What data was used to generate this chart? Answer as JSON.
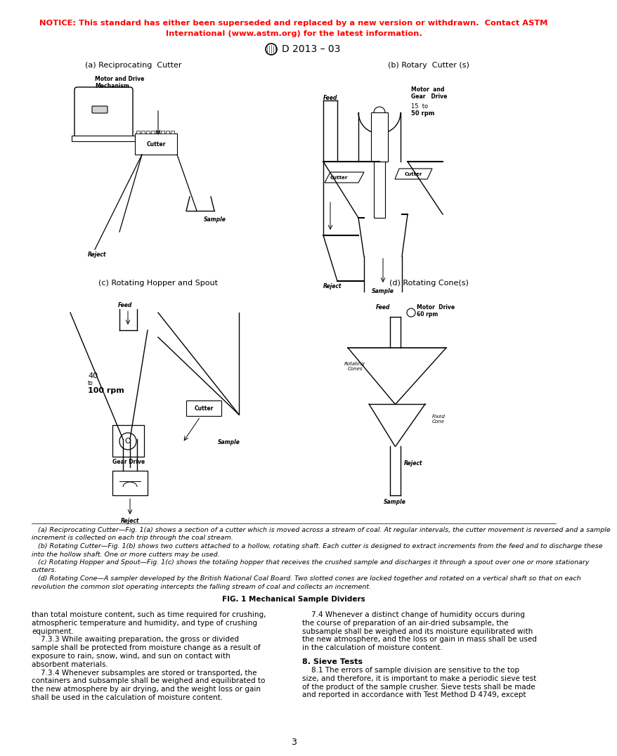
{
  "notice_line1": "NOTICE: This standard has either been superseded and replaced by a new version or withdrawn.  Contact ASTM",
  "notice_line2": "International (www.astm.org) for the latest information.",
  "notice_color": "#FF0000",
  "header_text": "D 2013 – 03",
  "label_a": "(a) Reciprocating  Cutter",
  "label_b": "(b) Rotary  Cutter (s)",
  "label_c": "(c) Rotating Hopper and Spout",
  "label_d": "(d) Rotating Cone(s)",
  "fig_caption_bold": "FIG. 1 Mechanical Sample Dividers",
  "caption_full": "   (a) Reciprocating Cutter—Fig. 1(a) shows a section of a cutter which is moved across a stream of coal. At regular intervals, the cutter movement is reversed and a sample\nincrement is collected on each trip through the coal stream.\n   (b) Rotating Cutter—Fig. 1(b) shows two cutters attached to a hollow, rotating shaft. Each cutter is designed to extract increments from the feed and to discharge these\ninto the hollow shaft. One or more cutters may be used.\n   (c) Rotating Hopper and Spout—Fig. 1(c) shows the totaling hopper that receives the crushed sample and discharges it through a spout over one or more stationary\ncutters.\n   (d) Rotating Cone—A sampler developed by the British National Coal Board. Two slotted cones are locked together and rotated on a vertical shaft so that on each\nrevolution the common slot operating intercepts the falling stream of coal and collects an increment.",
  "body_left_1": "than total moisture content, such as time required for crushing,",
  "body_left_2": "atmospheric temperature and humidity, and type of crushing",
  "body_left_3": "equipment.",
  "body_left_4": "    7.3.3 While awaiting preparation, the gross or divided",
  "body_left_5": "sample shall be protected from moisture change as a result of",
  "body_left_6": "exposure to rain, snow, wind, and sun on contact with",
  "body_left_7": "absorbent materials.",
  "body_left_8": "    7.3.4 Whenever subsamples are stored or transported, the",
  "body_left_9": "containers and subsample shall be weighed and equilibrated to",
  "body_left_10": "the new atmosphere by air drying, and the weight loss or gain",
  "body_left_11": "shall be used in the calculation of moisture content.",
  "body_right_1": "    7.4 Whenever a distinct change of humidity occurs during",
  "body_right_2": "the course of preparation of an air-dried subsample, the",
  "body_right_3": "subsample shall be weighed and its moisture equilibrated with",
  "body_right_4": "the new atmosphere, and the loss or gain in mass shall be used",
  "body_right_5": "in the calculation of moisture content.",
  "section8": "8. Sieve Tests",
  "body_right_6": "    8.1 The errors of sample division are sensitive to the top",
  "body_right_7": "size, and therefore, it is important to make a periodic sieve test",
  "body_right_8": "of the product of the sample crusher. Sieve tests shall be made",
  "body_right_9": "and reported in accordance with Test Method D 4749, except",
  "page_number": "3",
  "bg": "#FFFFFF",
  "black": "#000000",
  "red": "#FF0000"
}
